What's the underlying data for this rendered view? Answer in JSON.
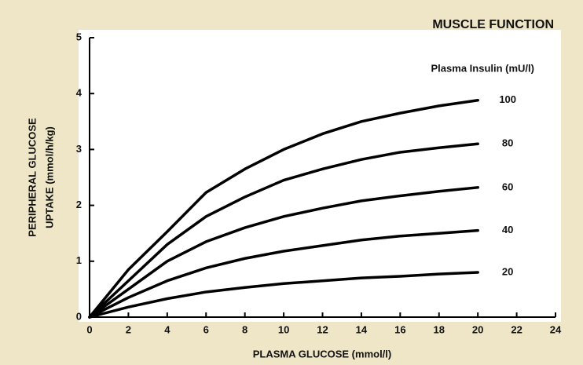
{
  "chart_data": {
    "type": "line",
    "title": "MUSCLE FUNCTION",
    "legend_title": "Plasma Insulin (mU/l)",
    "xlabel": "PLASMA GLUCOSE (mmol/l)",
    "ylabel": [
      "PERIPHERAL GLUCOSE",
      "UPTAKE (mmol/h/kg)"
    ],
    "x": [
      0,
      2,
      4,
      6,
      8,
      10,
      12,
      14,
      16,
      18,
      20
    ],
    "series": [
      {
        "name": "100",
        "color": "#000000",
        "values": [
          0,
          0.85,
          1.53,
          2.23,
          2.65,
          3.0,
          3.28,
          3.5,
          3.65,
          3.78,
          3.88
        ]
      },
      {
        "name": "80",
        "color": "#000000",
        "values": [
          0,
          0.65,
          1.3,
          1.8,
          2.15,
          2.45,
          2.65,
          2.82,
          2.95,
          3.03,
          3.1
        ]
      },
      {
        "name": "60",
        "color": "#000000",
        "values": [
          0,
          0.5,
          1.0,
          1.35,
          1.6,
          1.8,
          1.95,
          2.08,
          2.17,
          2.25,
          2.32
        ]
      },
      {
        "name": "40",
        "color": "#000000",
        "values": [
          0,
          0.35,
          0.65,
          0.88,
          1.05,
          1.18,
          1.28,
          1.38,
          1.45,
          1.5,
          1.55
        ]
      },
      {
        "name": "20",
        "color": "#000000",
        "values": [
          0,
          0.18,
          0.33,
          0.45,
          0.53,
          0.6,
          0.65,
          0.7,
          0.73,
          0.77,
          0.8
        ]
      }
    ],
    "xlim": [
      0,
      24
    ],
    "xticks": [
      0,
      2,
      4,
      6,
      8,
      10,
      12,
      14,
      16,
      18,
      20,
      22,
      24
    ],
    "ylim": [
      0,
      5
    ],
    "yticks": [
      0,
      1,
      2,
      3,
      4,
      5
    ],
    "grid": false
  }
}
